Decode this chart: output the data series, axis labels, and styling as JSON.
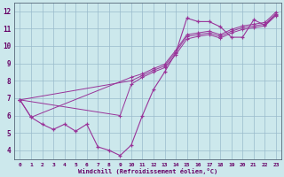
{
  "xlabel": "Windchill (Refroidissement éolien,°C)",
  "background_color": "#cce8ec",
  "grid_color": "#99bbcc",
  "line_color": "#993399",
  "xlim": [
    -0.5,
    23.5
  ],
  "ylim": [
    3.5,
    12.5
  ],
  "xticks": [
    0,
    1,
    2,
    3,
    4,
    5,
    6,
    7,
    8,
    9,
    10,
    11,
    12,
    13,
    14,
    15,
    16,
    17,
    18,
    19,
    20,
    21,
    22,
    23
  ],
  "yticks": [
    4,
    5,
    6,
    7,
    8,
    9,
    10,
    11,
    12
  ],
  "line1_x": [
    0,
    1,
    2,
    3,
    4,
    5,
    6,
    7,
    8,
    9,
    10,
    11,
    12,
    13,
    14,
    15,
    16,
    17,
    18,
    19,
    20,
    21,
    22,
    23
  ],
  "line1_y": [
    6.9,
    5.9,
    5.5,
    5.2,
    5.5,
    5.1,
    5.5,
    4.2,
    4.0,
    3.7,
    4.3,
    6.0,
    7.5,
    8.5,
    9.6,
    11.6,
    11.4,
    11.4,
    11.1,
    10.5,
    10.5,
    11.5,
    11.2,
    11.8
  ],
  "line2_x": [
    0,
    9,
    10,
    11,
    12,
    13,
    14,
    15,
    16,
    17,
    18,
    19,
    20,
    21,
    22,
    23
  ],
  "line2_y": [
    6.9,
    6.0,
    7.8,
    8.2,
    8.5,
    8.75,
    9.5,
    10.4,
    10.55,
    10.65,
    10.45,
    10.75,
    10.95,
    11.05,
    11.15,
    11.75
  ],
  "line3_x": [
    0,
    10,
    11,
    12,
    13,
    14,
    15,
    16,
    17,
    18,
    19,
    20,
    21,
    22,
    23
  ],
  "line3_y": [
    6.9,
    8.0,
    8.3,
    8.6,
    8.85,
    9.65,
    10.55,
    10.65,
    10.75,
    10.55,
    10.85,
    11.05,
    11.15,
    11.25,
    11.85
  ],
  "line4_x": [
    0,
    1,
    10,
    11,
    12,
    13,
    14,
    15,
    16,
    17,
    18,
    19,
    20,
    21,
    22,
    23
  ],
  "line4_y": [
    6.9,
    5.9,
    8.2,
    8.4,
    8.7,
    8.95,
    9.75,
    10.65,
    10.75,
    10.85,
    10.65,
    10.95,
    11.15,
    11.25,
    11.35,
    11.95
  ]
}
